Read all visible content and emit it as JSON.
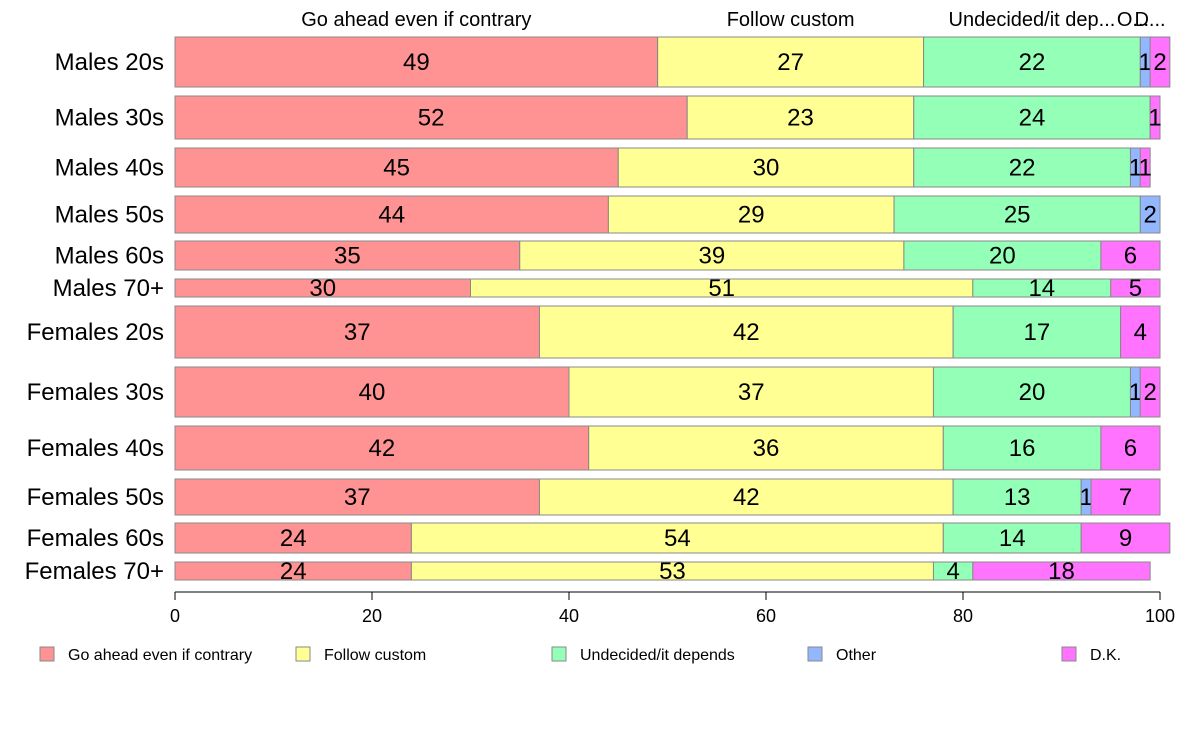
{
  "chart_data": {
    "type": "bar",
    "orientation": "horizontal",
    "stacked": true,
    "xlim": [
      0,
      100
    ],
    "x_ticks": [
      0,
      20,
      40,
      60,
      80,
      100
    ],
    "grid": false,
    "legend_position": "bottom",
    "top_labels": [
      "Go ahead even if contrary",
      "Follow custom",
      "Undecided/it dep...",
      "O...",
      "D..."
    ],
    "categories": [
      "Males 20s",
      "Males 30s",
      "Males 40s",
      "Males 50s",
      "Males 60s",
      "Males 70+",
      "Females 20s",
      "Females 30s",
      "Females 40s",
      "Females 50s",
      "Females 60s",
      "Females 70+"
    ],
    "series": [
      {
        "name": "Go ahead even if contrary",
        "color": "#FF9393",
        "values": [
          49,
          52,
          45,
          44,
          35,
          30,
          37,
          40,
          42,
          37,
          24,
          24
        ]
      },
      {
        "name": "Follow custom",
        "color": "#FFFF93",
        "values": [
          27,
          23,
          30,
          29,
          39,
          51,
          42,
          37,
          36,
          42,
          54,
          53
        ]
      },
      {
        "name": "Undecided/it depends",
        "color": "#93FFB7",
        "values": [
          22,
          24,
          22,
          25,
          20,
          14,
          17,
          20,
          16,
          13,
          14,
          4
        ]
      },
      {
        "name": "Other",
        "color": "#93B7FF",
        "values": [
          1,
          0,
          1,
          2,
          0,
          0,
          0,
          1,
          0,
          1,
          0,
          0
        ]
      },
      {
        "name": "D.K.",
        "color": "#FF73FF",
        "values": [
          2,
          1,
          1,
          0,
          6,
          5,
          4,
          2,
          6,
          7,
          9,
          18
        ]
      }
    ]
  }
}
